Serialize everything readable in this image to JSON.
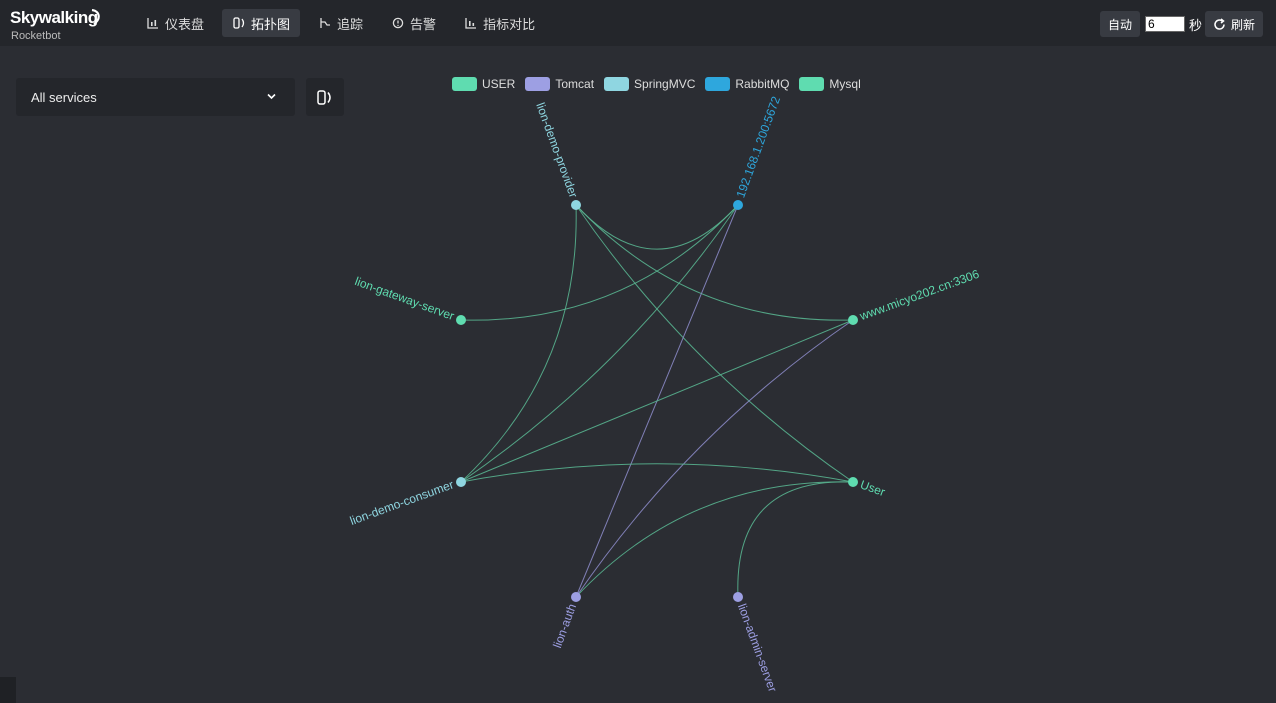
{
  "app": {
    "logo_text": "Skywalking",
    "logo_sub": "Rocketbot"
  },
  "nav": [
    {
      "label": "仪表盘",
      "icon": "dashboard-icon",
      "active": false
    },
    {
      "label": "拓扑图",
      "icon": "topology-icon",
      "active": true
    },
    {
      "label": "追踪",
      "icon": "trace-icon",
      "active": false
    },
    {
      "label": "告警",
      "icon": "alarm-icon",
      "active": false
    },
    {
      "label": "指标对比",
      "icon": "comparison-icon",
      "active": false
    }
  ],
  "controls": {
    "auto_label": "自动",
    "interval_value": "6",
    "unit": "秒",
    "refresh_label": "刷新"
  },
  "service_select": {
    "value": "All services"
  },
  "legend": [
    {
      "label": "USER",
      "color": "#5fdcb0"
    },
    {
      "label": "Tomcat",
      "color": "#9d9fe3"
    },
    {
      "label": "SpringMVC",
      "color": "#8fd6e1"
    },
    {
      "label": "RabbitMQ",
      "color": "#2ea7dd"
    },
    {
      "label": "Mysql",
      "color": "#5fdcb0"
    }
  ],
  "colors": {
    "edge_green": "#58b38f",
    "edge_purple": "#8a88c4"
  },
  "nodes": [
    {
      "id": "provider",
      "label": "lion-demo-provider",
      "color": "#8fd6e1"
    },
    {
      "id": "rabbit",
      "label": "192.168.1.200:5672",
      "color": "#2ea7dd"
    },
    {
      "id": "gateway",
      "label": "lion-gateway-server",
      "color": "#5fdcb0"
    },
    {
      "id": "mysql",
      "label": "www.micyo202.cn:3306",
      "color": "#5fdcb0"
    },
    {
      "id": "consumer",
      "label": "lion-demo-consumer",
      "color": "#8fd6e1"
    },
    {
      "id": "user",
      "label": "User",
      "color": "#5fdcb0"
    },
    {
      "id": "auth",
      "label": "lion-auth",
      "color": "#9d9fe3"
    },
    {
      "id": "admin",
      "label": "lion-admin-server",
      "color": "#9d9fe3"
    }
  ]
}
